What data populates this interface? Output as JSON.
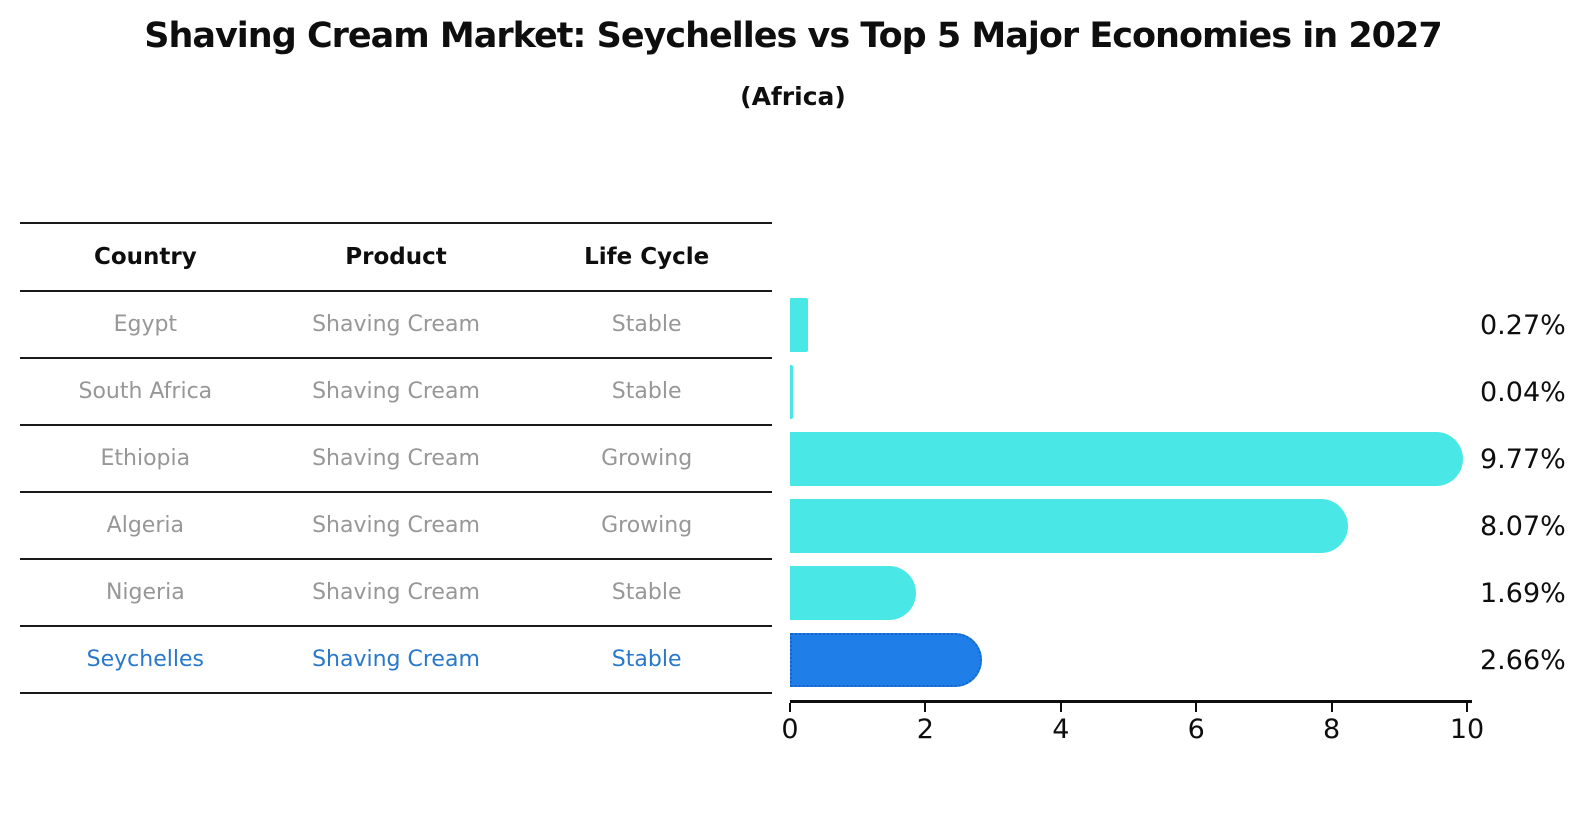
{
  "title": "Shaving Cream Market: Seychelles vs Top 5 Major Economies in 2027",
  "subtitle": "(Africa)",
  "table": {
    "headers": [
      "Country",
      "Product",
      "Life Cycle"
    ],
    "rows": [
      {
        "country": "Egypt",
        "product": "Shaving Cream",
        "life_cycle": "Stable",
        "highlight": false
      },
      {
        "country": "South Africa",
        "product": "Shaving Cream",
        "life_cycle": "Stable",
        "highlight": false
      },
      {
        "country": "Ethiopia",
        "product": "Shaving Cream",
        "life_cycle": "Growing",
        "highlight": false
      },
      {
        "country": "Algeria",
        "product": "Shaving Cream",
        "life_cycle": "Growing",
        "highlight": false
      },
      {
        "country": "Nigeria",
        "product": "Shaving Cream",
        "life_cycle": "Stable",
        "highlight": false
      },
      {
        "country": "Seychelles",
        "product": "Shaving Cream",
        "life_cycle": "Stable",
        "highlight": true
      }
    ]
  },
  "chart_data": {
    "type": "bar",
    "orientation": "horizontal",
    "title": "Shaving Cream Market: Seychelles vs Top 5 Major Economies in 2027",
    "subtitle": "(Africa)",
    "categories": [
      "Egypt",
      "South Africa",
      "Ethiopia",
      "Algeria",
      "Nigeria",
      "Seychelles"
    ],
    "values": [
      0.27,
      0.04,
      9.77,
      8.07,
      1.69,
      2.66
    ],
    "value_labels": [
      "0.27%",
      "0.04%",
      "9.77%",
      "8.07%",
      "1.69%",
      "2.66%"
    ],
    "xlim": [
      0,
      10
    ],
    "x_ticks": [
      0,
      2,
      4,
      6,
      8,
      10
    ],
    "grid": false,
    "legend": false,
    "highlight_category": "Seychelles",
    "colors": {
      "bar": "#4ae7e7",
      "highlight_bar": "#1f7ee8",
      "highlight_bar_border": "#1565c8",
      "highlight_text": "#2878cb",
      "row_text": "#979797",
      "axis_text": "#0e0e0e"
    }
  }
}
